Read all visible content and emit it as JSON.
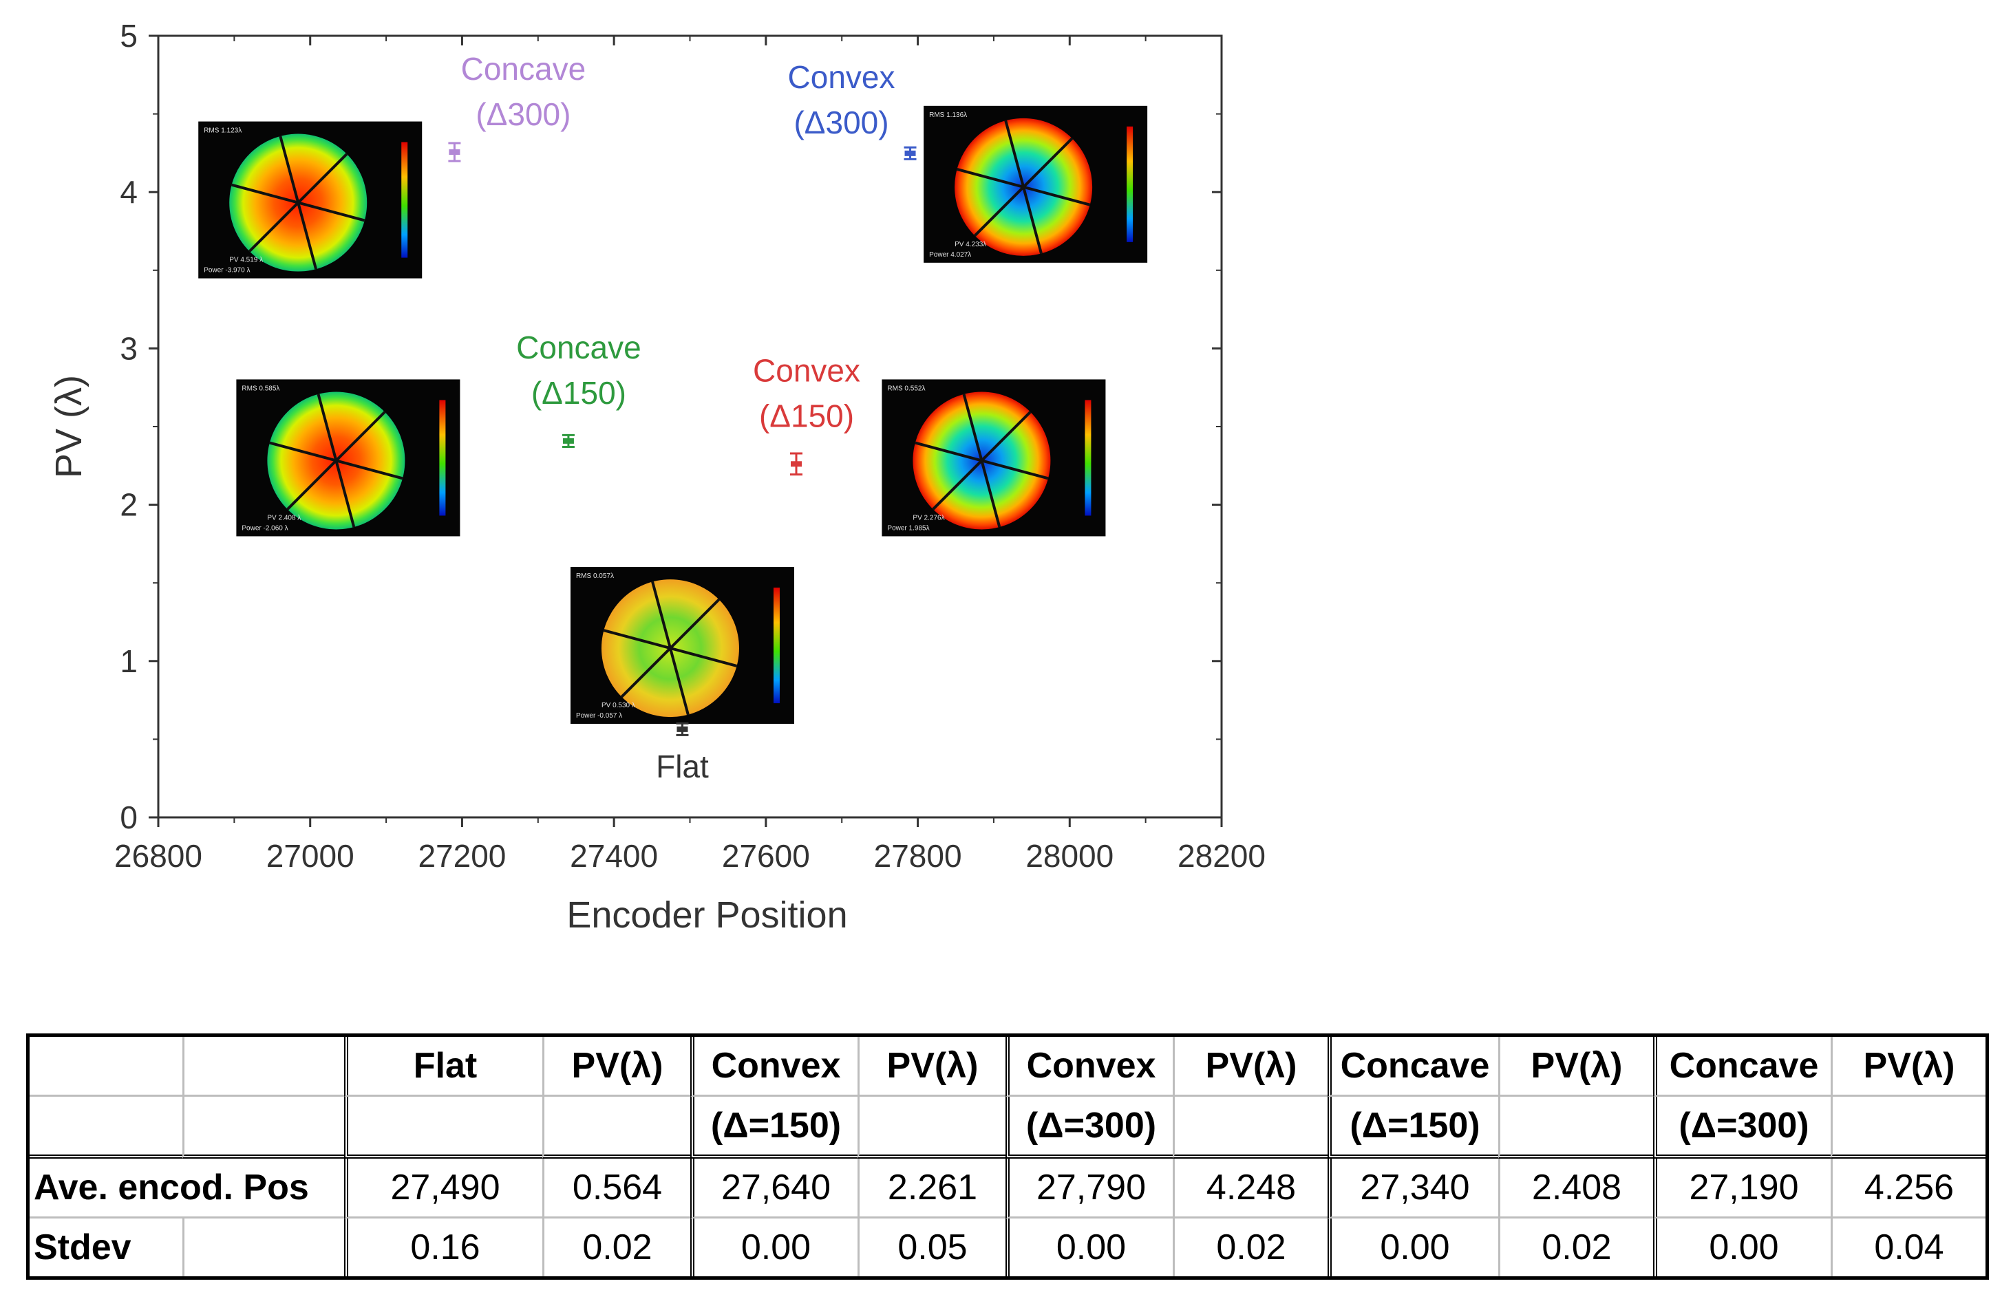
{
  "chart_data": {
    "type": "scatter",
    "xlabel": "Encoder Position",
    "ylabel": "PV (λ)",
    "xlim": [
      26800,
      28200
    ],
    "ylim": [
      0,
      5
    ],
    "xticks": [
      "26800",
      "27000",
      "27200",
      "27400",
      "27600",
      "27800",
      "28000",
      "28200"
    ],
    "yticks": [
      "0",
      "1",
      "2",
      "3",
      "4",
      "5"
    ],
    "series": [
      {
        "name": "Flat",
        "label_lines": [
          "Flat"
        ],
        "x": 27490,
        "y": 0.564,
        "err": 0.02,
        "color": "#333333",
        "label_pos": "below",
        "inset": {
          "rms": "RMS 0.057λ",
          "pv": "PV 0.530 λ",
          "power": "Power -0.057 λ"
        }
      },
      {
        "name": "Convex (Δ150)",
        "label_lines": [
          "Convex",
          "(Δ150)"
        ],
        "x": 27640,
        "y": 2.261,
        "err": 0.05,
        "color": "#d93a3a",
        "label_pos": "above",
        "inset": {
          "rms": "RMS 0.552λ",
          "pv": "PV 2.276λ",
          "power": "Power 1.985λ"
        }
      },
      {
        "name": "Convex (Δ300)",
        "label_lines": [
          "Convex",
          "(Δ300)"
        ],
        "x": 27790,
        "y": 4.248,
        "err": 0.02,
        "color": "#3b5bc9",
        "label_pos": "left-above",
        "inset": {
          "rms": "RMS 1.136λ",
          "pv": "PV 4.233λ",
          "power": "Power 4.027λ"
        }
      },
      {
        "name": "Concave (Δ150)",
        "label_lines": [
          "Concave",
          "(Δ150)"
        ],
        "x": 27340,
        "y": 2.408,
        "err": 0.02,
        "color": "#2e9a3e",
        "label_pos": "above",
        "inset": {
          "rms": "RMS 0.585λ",
          "pv": "PV 2.408 λ",
          "power": "Power -2.060 λ"
        }
      },
      {
        "name": "Concave (Δ300)",
        "label_lines": [
          "Concave",
          "(Δ300)"
        ],
        "x": 27190,
        "y": 4.256,
        "err": 0.04,
        "color": "#b287d6",
        "label_pos": "right-above",
        "inset": {
          "rms": "RMS 1.123λ",
          "pv": "PV 4.519 λ",
          "power": "Power -3.970 λ"
        }
      }
    ]
  },
  "table": {
    "header_row1": [
      "",
      "",
      "Flat",
      "PV(λ)",
      "Convex",
      "PV(λ)",
      "Convex",
      "PV(λ)",
      "Concave",
      "PV(λ)",
      "Concave",
      "PV(λ)"
    ],
    "header_row2": [
      "",
      "",
      "",
      "",
      "(Δ=150)",
      "",
      "(Δ=300)",
      "",
      "(Δ=150)",
      "",
      "(Δ=300)",
      ""
    ],
    "rows": [
      {
        "label": "Ave. encod. Pos",
        "values": [
          "27,490",
          "0.564",
          "27,640",
          "2.261",
          "27,790",
          "4.248",
          "27,340",
          "2.408",
          "27,190",
          "4.256"
        ]
      },
      {
        "label": "Stdev",
        "values": [
          "0.16",
          "0.02",
          "0.00",
          "0.05",
          "0.00",
          "0.02",
          "0.00",
          "0.02",
          "0.00",
          "0.04"
        ]
      }
    ]
  }
}
